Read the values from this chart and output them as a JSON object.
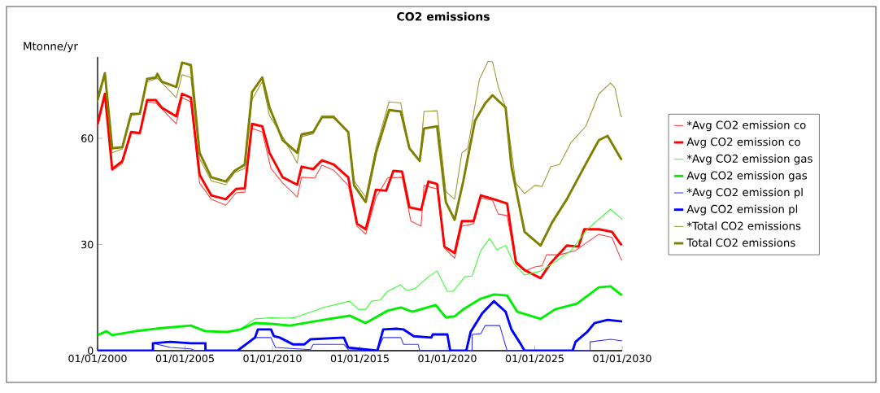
{
  "chart_data": {
    "type": "line",
    "title": "CO2 emissions",
    "ylabel": "Mtonne/yr",
    "xlim": [
      "2000-01-01",
      "2030-01-01"
    ],
    "ylim": [
      0,
      83
    ],
    "xticks": [
      {
        "value": "2000-01-01",
        "label": "01/01/2000"
      },
      {
        "value": "2005-01-01",
        "label": "01/01/2005"
      },
      {
        "value": "2010-01-01",
        "label": "01/01/2010"
      },
      {
        "value": "2015-01-01",
        "label": "01/01/2015"
      },
      {
        "value": "2020-01-01",
        "label": "01/01/2020"
      },
      {
        "value": "2025-01-01",
        "label": "01/01/2025"
      },
      {
        "value": "2030-01-01",
        "label": "01/01/2030"
      }
    ],
    "yticks": [
      0,
      30,
      60
    ],
    "grid": false,
    "legend": "right",
    "marker": "none",
    "line_style": "solid",
    "series": [
      {
        "name": "*Avg CO2 emission  co",
        "color": "#ff4040",
        "x": [
          "2000-01",
          "2000-06",
          "2000-11",
          "2001-06",
          "2001-12",
          "2002-06",
          "2002-11",
          "2003-05",
          "2004-07",
          "2004-11",
          "2005-05",
          "2005-11",
          "2006-07",
          "2007-05",
          "2007-12",
          "2008-06",
          "2008-11",
          "2009-06",
          "2009-12",
          "2010-08",
          "2011-06",
          "2011-09",
          "2012-06",
          "2012-11",
          "2013-07",
          "2014-05",
          "2014-11",
          "2015-05",
          "2015-12",
          "2016-08",
          "2017-06",
          "2017-12",
          "2018-07",
          "2018-09",
          "2019-06",
          "2019-11",
          "2020-06",
          "2020-11",
          "2021-07",
          "2021-12",
          "2022-08",
          "2022-12",
          "2023-06",
          "2023-12",
          "2024-06",
          "2025-01",
          "2025-06",
          "2025-09",
          "2026-06",
          "2027-05",
          "2027-11",
          "2028-09",
          "2029-06",
          "2029-12",
          "2030-01"
        ],
        "values": [
          63,
          72,
          50.9,
          53,
          61.5,
          61.3,
          70.3,
          70,
          64.1,
          71.5,
          70.3,
          47.4,
          42.8,
          41.1,
          44.6,
          44.8,
          62.8,
          61.8,
          51.5,
          47.4,
          43.4,
          49,
          48.8,
          52.4,
          51,
          46.7,
          35.2,
          32.9,
          43.2,
          48.8,
          49,
          36.6,
          35.2,
          46.7,
          45.7,
          29,
          26.1,
          35.2,
          35.9,
          43.2,
          42.5,
          38.6,
          38.2,
          24.6,
          22.5,
          23.7,
          24,
          27.1,
          27.1,
          28.3,
          30.1,
          32.9,
          32,
          26,
          25.5
        ]
      },
      {
        "name": "Avg CO2 emission  co",
        "color": "#ff0000",
        "x": [
          "2000-01",
          "2000-06",
          "2000-11",
          "2001-06",
          "2001-12",
          "2002-06",
          "2002-11",
          "2003-05",
          "2003-09",
          "2004-07",
          "2004-11",
          "2005-05",
          "2005-11",
          "2006-07",
          "2007-05",
          "2007-12",
          "2008-06",
          "2008-11",
          "2009-06",
          "2009-11",
          "2010-08",
          "2011-06",
          "2011-09",
          "2012-05",
          "2012-11",
          "2013-07",
          "2014-05",
          "2014-11",
          "2015-05",
          "2015-12",
          "2016-07",
          "2016-12",
          "2017-06",
          "2017-11",
          "2018-07",
          "2018-12",
          "2019-06",
          "2019-11",
          "2020-06",
          "2020-11",
          "2021-07",
          "2021-12",
          "2022-09",
          "2023-06",
          "2023-12",
          "2024-06",
          "2025-05",
          "2025-12",
          "2026-11",
          "2027-07",
          "2027-11",
          "2028-09",
          "2029-06",
          "2029-12",
          "2030-01"
        ],
        "values": [
          64.1,
          72.6,
          51.3,
          53.6,
          61.8,
          61.5,
          70.8,
          70.8,
          68.7,
          66.2,
          72.6,
          71.5,
          49.7,
          43.9,
          42.8,
          45.7,
          45.9,
          64.1,
          63.4,
          55.9,
          49,
          46.9,
          52,
          51.3,
          53.8,
          52.6,
          49,
          35.9,
          34.3,
          45.5,
          45.2,
          50.8,
          50.6,
          40.5,
          39.8,
          47.8,
          47.1,
          29.4,
          27.6,
          36.6,
          36.6,
          43.9,
          42.8,
          41.6,
          25.1,
          22.8,
          20.5,
          24.8,
          29.7,
          29.4,
          34.3,
          34.3,
          33.6,
          30.1,
          30
        ]
      },
      {
        "name": "*Avg CO2 emission gas",
        "color": "#33ff33",
        "x": [
          "2000-01",
          "2000-07",
          "2000-11",
          "2002-03",
          "2003-09",
          "2005-05",
          "2006-03",
          "2007-06",
          "2008-03",
          "2009-01",
          "2009-12",
          "2010-12",
          "2011-05",
          "2012-12",
          "2014-06",
          "2014-12",
          "2015-05",
          "2015-09",
          "2016-03",
          "2016-08",
          "2017-05",
          "2017-09",
          "2018-03",
          "2018-12",
          "2019-06",
          "2020-01",
          "2020-05",
          "2021-01",
          "2021-06",
          "2021-12",
          "2022-06",
          "2022-11",
          "2023-05",
          "2023-11",
          "2024-06",
          "2025-05",
          "2026-03",
          "2027-02",
          "2028-01",
          "2029-05",
          "2029-12",
          "2030-01"
        ],
        "values": [
          4.4,
          5.5,
          4.4,
          5.5,
          6.4,
          7.1,
          5.5,
          5.3,
          6.1,
          9,
          9.3,
          9.2,
          9.4,
          12.2,
          14,
          11.7,
          11.7,
          14,
          14.3,
          16.8,
          18.6,
          17,
          17.6,
          20.9,
          22.5,
          16.8,
          16.8,
          20.9,
          21.1,
          28.3,
          31.7,
          28.5,
          29.7,
          24.4,
          21.4,
          22.5,
          25.1,
          28.3,
          34.3,
          40,
          37.5,
          37
        ]
      },
      {
        "name": "Avg CO2 emission gas",
        "color": "#00ee00",
        "x": [
          "2000-01",
          "2000-07",
          "2000-11",
          "2002-03",
          "2003-09",
          "2005-05",
          "2006-03",
          "2007-06",
          "2008-03",
          "2009-01",
          "2009-12",
          "2011-01",
          "2012-12",
          "2014-06",
          "2015-05",
          "2016-08",
          "2017-05",
          "2018-01",
          "2019-05",
          "2019-12",
          "2020-06",
          "2020-12",
          "2021-12",
          "2022-09",
          "2023-06",
          "2024-01",
          "2025-05",
          "2026-03",
          "2027-06",
          "2028-09",
          "2029-05",
          "2029-12",
          "2030-01"
        ],
        "values": [
          4.4,
          5.5,
          4.4,
          5.5,
          6.4,
          7.1,
          5.5,
          5.3,
          6,
          7.8,
          7.6,
          7.1,
          8.7,
          9.9,
          7.8,
          11.3,
          12.2,
          11,
          12.9,
          9.4,
          9.7,
          11.7,
          14.7,
          15.9,
          15.6,
          11,
          9,
          11.7,
          13.3,
          17.9,
          18.2,
          15.9,
          15.8
        ]
      },
      {
        "name": "*Avg CO2 emission pl",
        "color": "#3333ff",
        "x": [
          "2000-01",
          "2003-03",
          "2003-03",
          "2004-03",
          "2005-05",
          "2005-08",
          "2008-01",
          "2009-01",
          "2009-12",
          "2010-03",
          "2012-03",
          "2012-05",
          "2014-02",
          "2014-05",
          "2016-01",
          "2016-05",
          "2017-05",
          "2017-07",
          "2018-05",
          "2018-06",
          "2021-06",
          "2021-06",
          "2021-12",
          "2022-03",
          "2023-01",
          "2023-06",
          "2028-03",
          "2028-03",
          "2029-05",
          "2029-12",
          "2030-01"
        ],
        "values": [
          0,
          0,
          2.1,
          0.9,
          0.5,
          0,
          0,
          3.7,
          3.7,
          0.9,
          0.3,
          1.8,
          1.8,
          0.3,
          0,
          3.7,
          3.7,
          1.8,
          1.8,
          0,
          0,
          4.6,
          4.8,
          7.1,
          7.1,
          0,
          0,
          2.5,
          3.2,
          2.8,
          2.8
        ]
      },
      {
        "name": "Avg CO2 emission pl",
        "color": "#0000ff",
        "x": [
          "2000-01",
          "2003-03",
          "2003-03",
          "2004-03",
          "2005-05",
          "2006-03",
          "2006-03",
          "2008-01",
          "2009-01",
          "2009-03",
          "2009-12",
          "2010-02",
          "2010-06",
          "2011-03",
          "2011-11",
          "2012-03",
          "2014-02",
          "2014-05",
          "2015-01",
          "2016-01",
          "2016-05",
          "2017-02",
          "2017-07",
          "2018-02",
          "2019-02",
          "2019-03",
          "2020-01",
          "2020-03",
          "2021-02",
          "2021-05",
          "2022-01",
          "2022-09",
          "2023-05",
          "2023-09",
          "2024-03",
          "2024-06",
          "2027-03",
          "2027-05",
          "2028-01",
          "2028-06",
          "2029-03",
          "2029-12",
          "2030-01"
        ],
        "values": [
          0,
          0,
          2.1,
          2.5,
          2.1,
          2.1,
          0,
          0,
          3.7,
          6,
          6,
          4.1,
          3.7,
          1.8,
          1.8,
          3.2,
          3.7,
          0.9,
          0.5,
          0,
          6,
          6.2,
          6,
          4.1,
          3.7,
          4.6,
          4.6,
          0,
          0,
          5.3,
          10.6,
          14,
          11,
          6,
          2.1,
          0,
          0,
          2.5,
          5.3,
          7.8,
          8.7,
          8.3,
          8.3
        ]
      },
      {
        "name": "*Total CO2 emissions",
        "color": "#999933",
        "x": [
          "2000-01",
          "2000-06",
          "2000-11",
          "2001-06",
          "2001-12",
          "2002-06",
          "2002-11",
          "2003-06",
          "2004-07",
          "2004-11",
          "2005-05",
          "2005-11",
          "2006-07",
          "2007-05",
          "2007-11",
          "2008-06",
          "2008-11",
          "2009-06",
          "2009-11",
          "2010-08",
          "2011-06",
          "2011-09",
          "2012-05",
          "2012-11",
          "2013-07",
          "2014-05",
          "2014-09",
          "2015-05",
          "2015-12",
          "2016-09",
          "2017-05",
          "2017-11",
          "2018-06",
          "2018-09",
          "2019-06",
          "2019-12",
          "2020-06",
          "2020-11",
          "2021-03",
          "2021-11",
          "2022-05",
          "2022-08",
          "2022-12",
          "2023-05",
          "2023-12",
          "2024-06",
          "2025-01",
          "2025-06",
          "2025-12",
          "2026-06",
          "2027-02",
          "2027-12",
          "2028-09",
          "2029-05",
          "2029-08",
          "2029-12",
          "2030-01"
        ],
        "values": [
          70,
          78,
          55.9,
          57,
          66.5,
          66.8,
          76,
          77,
          71.5,
          78,
          77.2,
          54.3,
          48,
          46.9,
          50.3,
          51.5,
          71,
          76,
          66.4,
          60.5,
          53,
          60.5,
          61.3,
          66.4,
          66.4,
          61.5,
          48,
          43.4,
          57.2,
          70.3,
          70,
          57.2,
          53.6,
          67.6,
          67.8,
          45,
          42.8,
          55.9,
          57.2,
          76.6,
          81.8,
          81.6,
          74.5,
          68.7,
          47.4,
          44.4,
          46.7,
          46.4,
          52,
          52.6,
          58.9,
          63.4,
          72.6,
          75.6,
          74.3,
          66.4,
          66
        ]
      },
      {
        "name": "Total CO2 emissions",
        "color": "#808000",
        "x": [
          "2000-01",
          "2000-06",
          "2000-11",
          "2001-06",
          "2001-12",
          "2002-06",
          "2002-11",
          "2003-05",
          "2003-06",
          "2003-09",
          "2004-07",
          "2004-11",
          "2005-05",
          "2005-11",
          "2006-07",
          "2007-05",
          "2007-11",
          "2008-06",
          "2008-11",
          "2009-06",
          "2009-11",
          "2010-08",
          "2011-06",
          "2011-09",
          "2012-05",
          "2012-11",
          "2013-07",
          "2014-05",
          "2014-09",
          "2015-05",
          "2015-12",
          "2016-09",
          "2017-05",
          "2017-11",
          "2018-06",
          "2018-09",
          "2019-06",
          "2019-12",
          "2020-06",
          "2020-12",
          "2021-08",
          "2022-03",
          "2022-08",
          "2023-05",
          "2023-09",
          "2024-06",
          "2025-05",
          "2026-01",
          "2026-11",
          "2027-11",
          "2028-09",
          "2029-03",
          "2029-12",
          "2030-01"
        ],
        "values": [
          71,
          78.4,
          57.2,
          57.5,
          66.9,
          67,
          76.8,
          77.2,
          78.2,
          76,
          74.5,
          81.4,
          80.7,
          55.9,
          49,
          47.8,
          50.8,
          52.6,
          73.1,
          77.2,
          68.7,
          59.5,
          55.9,
          61.1,
          61.8,
          66,
          66,
          61.8,
          46.7,
          42,
          55.9,
          68,
          67.6,
          57.2,
          53.6,
          62.8,
          63.4,
          42,
          37,
          48,
          65,
          69.9,
          72.2,
          68.7,
          52,
          33.6,
          29.7,
          36.3,
          42.8,
          52,
          59.5,
          60.7,
          54.3,
          54
        ]
      }
    ]
  }
}
